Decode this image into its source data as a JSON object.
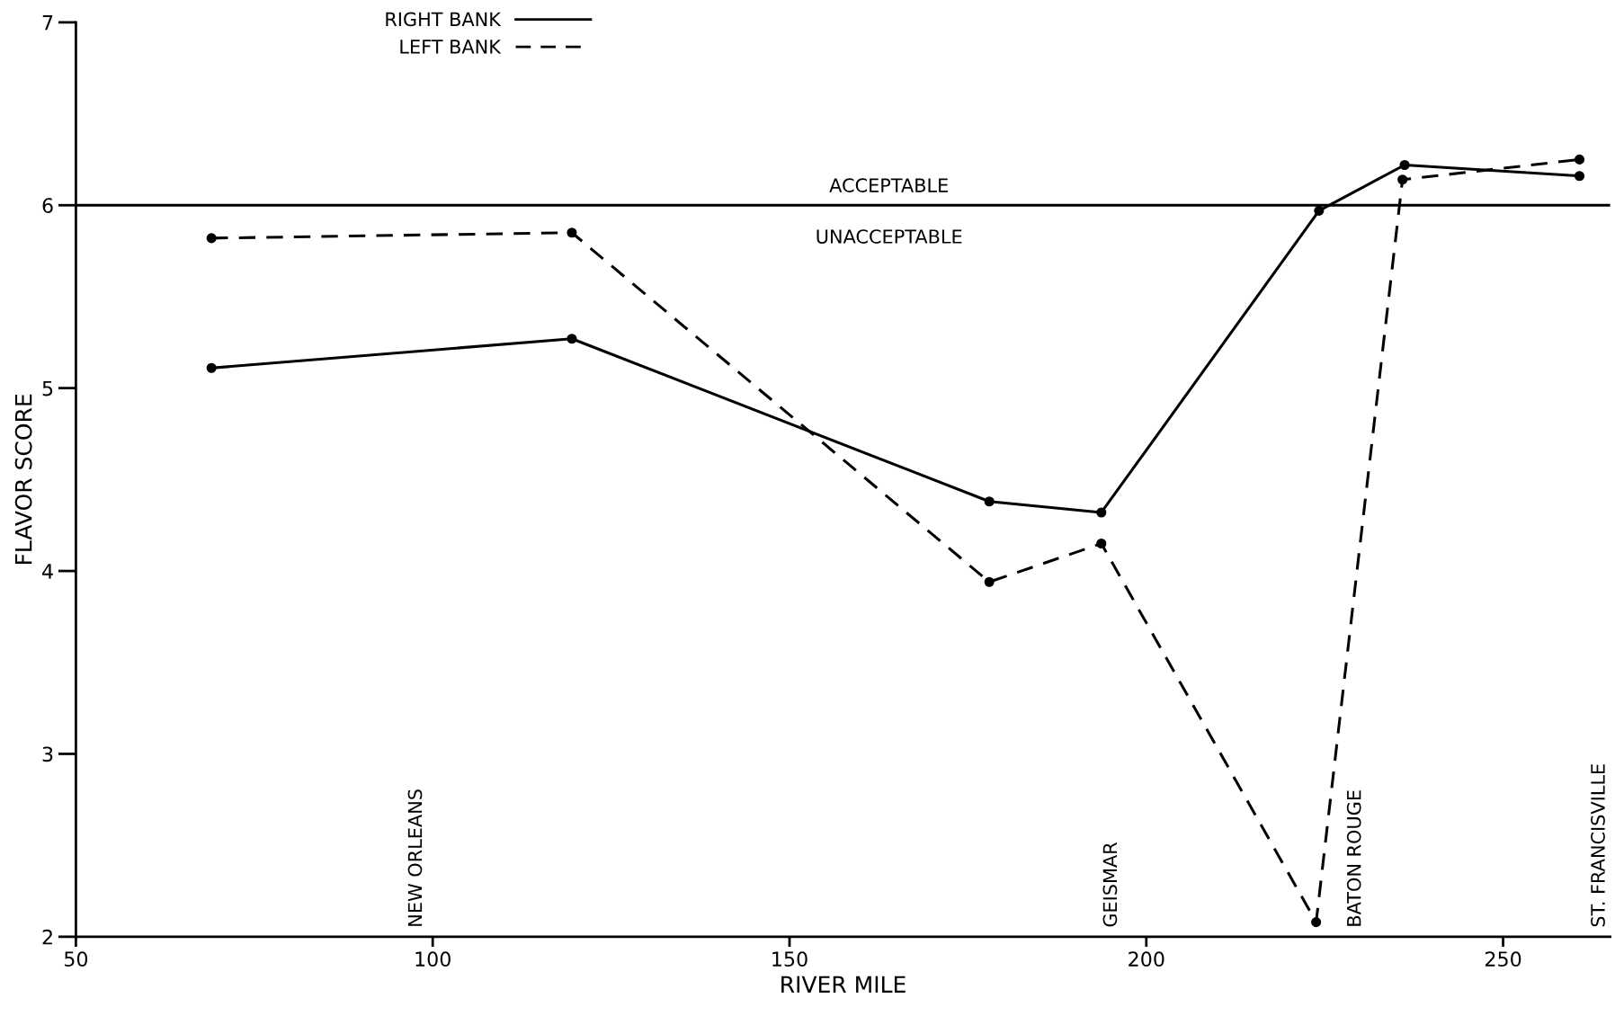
{
  "chart_data": {
    "type": "line",
    "xlabel": "RIVER MILE",
    "ylabel": "FLAVOR SCORE",
    "xlim": [
      50,
      265
    ],
    "xticks": [
      50,
      100,
      150,
      200,
      250
    ],
    "ylim": [
      2,
      7
    ],
    "yticks": [
      2,
      3,
      4,
      5,
      6,
      7
    ],
    "series": [
      {
        "name": "RIGHT BANK",
        "color": "#000000",
        "line_style": "solid",
        "x": [
          69,
          119.5,
          178,
          193.7,
          224.2,
          236.2,
          260.7
        ],
        "values": [
          5.11,
          5.27,
          4.38,
          4.32,
          5.97,
          6.22,
          6.16
        ]
      },
      {
        "name": "LEFT BANK",
        "color": "#000000",
        "line_style": "dashed",
        "x": [
          69,
          119.5,
          178,
          193.7,
          223.8,
          235.9,
          260.7
        ],
        "values": [
          5.82,
          5.85,
          3.94,
          4.15,
          2.08,
          6.14,
          6.25
        ]
      }
    ],
    "ref_lines": [
      {
        "axis": "y",
        "value": 6,
        "color": "#000000"
      }
    ],
    "annotations": [
      "ACCEPTABLE",
      "UNACCEPTABLE",
      "NEW ORLEANS",
      "GEISMAR",
      "BATON ROUGE",
      "ST. FRANCISVILLE"
    ],
    "marker": "circle",
    "grid": false,
    "legend": "top left"
  }
}
